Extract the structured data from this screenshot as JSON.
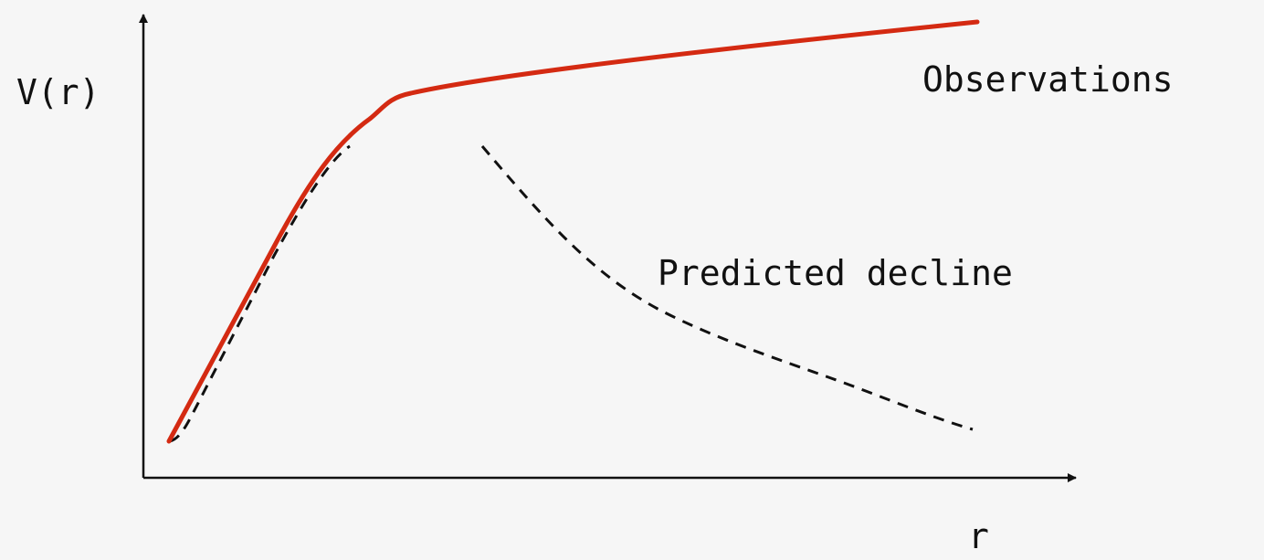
{
  "labels": {
    "y_axis": "V(r)",
    "x_axis": "r",
    "observations": "Observations",
    "predicted": "Predicted decline"
  },
  "colors": {
    "background": "#f6f6f6",
    "observed_curve": "#d42a12",
    "predicted_curve": "#111111",
    "axes": "#111111"
  }
}
